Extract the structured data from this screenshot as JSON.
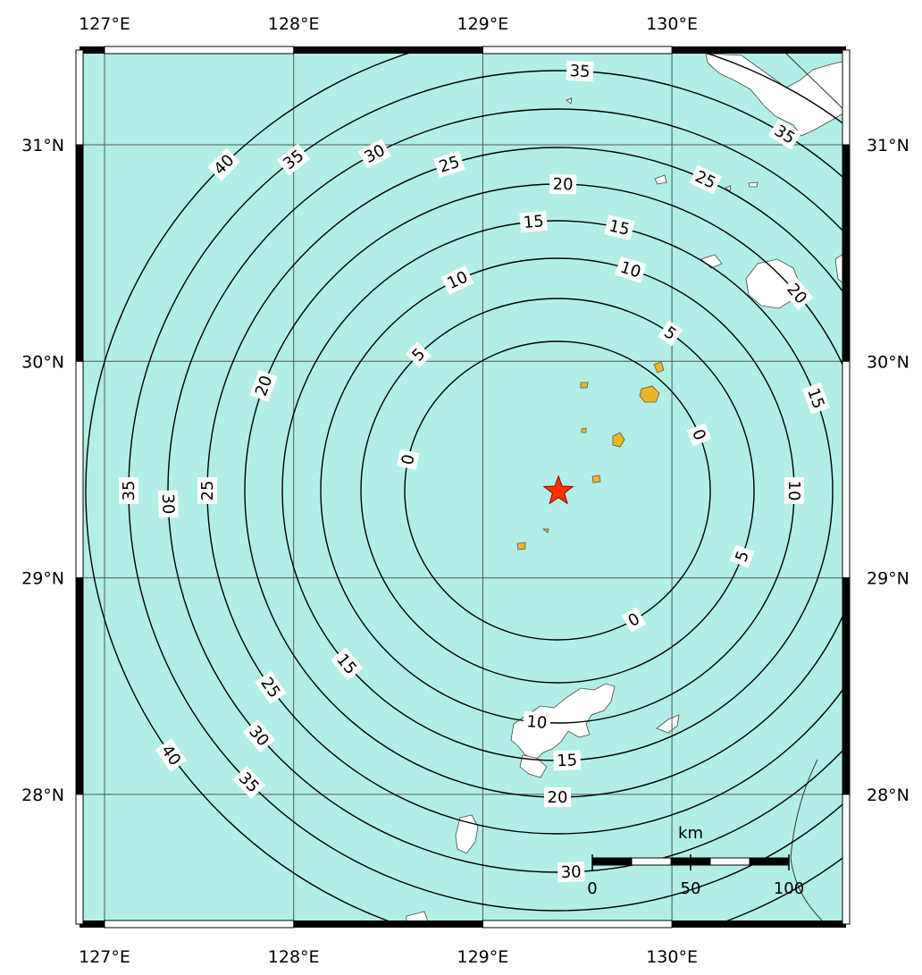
{
  "map": {
    "colors": {
      "sea": "#b1efe6",
      "land": "#ffffff",
      "highlight_land": "#f0b622",
      "contour": "#000000",
      "epicenter": "#ff3300",
      "grid": "#555555"
    },
    "lon_ticks": [
      "127°E",
      "128°E",
      "129°E",
      "130°E"
    ],
    "lat_ticks": [
      "31°N",
      "30°N",
      "29°N",
      "28°N"
    ],
    "epicenter": {
      "symbol": "star-icon",
      "lon": 129.4,
      "lat": 29.4
    },
    "contour_interval": 5,
    "contours": [
      {
        "ring": 1,
        "labels": [
          "0",
          "0",
          "0"
        ]
      },
      {
        "ring": 2,
        "labels": [
          "5",
          "5",
          "5"
        ]
      },
      {
        "ring": 3,
        "labels": [
          "10",
          "10",
          "10",
          "10"
        ]
      },
      {
        "ring": 4,
        "labels": [
          "15",
          "15",
          "15",
          "15",
          "15"
        ]
      },
      {
        "ring": 5,
        "labels": [
          "20",
          "20",
          "20",
          "20"
        ]
      },
      {
        "ring": 6,
        "labels": [
          "25",
          "25",
          "25",
          "25"
        ]
      },
      {
        "ring": 7,
        "labels": [
          "30",
          "30",
          "30",
          "30"
        ]
      },
      {
        "ring": 8,
        "labels": [
          "35",
          "35",
          "35",
          "35",
          "35"
        ]
      },
      {
        "ring": 9,
        "labels": [
          "40",
          "40"
        ]
      }
    ],
    "scale_bar": {
      "unit": "km",
      "ticks": [
        "0",
        "50",
        "100"
      ]
    }
  }
}
